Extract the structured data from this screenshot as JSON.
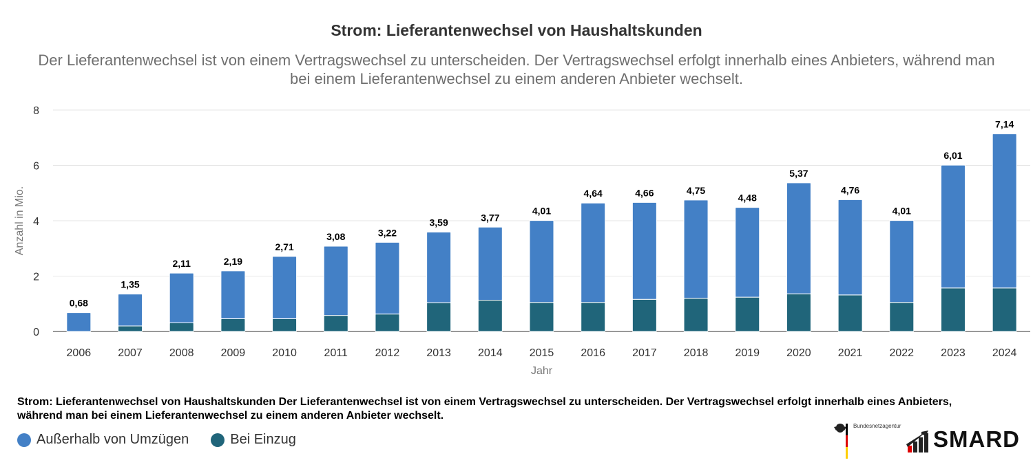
{
  "chart_data": {
    "type": "bar",
    "stacked": true,
    "title": "Strom: Lieferantenwechsel von Haushaltskunden",
    "subtitle": "Der Lieferantenwechsel ist von einem Vertragswechsel zu unterscheiden. Der Vertragswechsel erfolgt innerhalb eines Anbieters, während man bei einem Lieferantenwechsel zu einem anderen Anbieter wechselt.",
    "xlabel": "Jahr",
    "ylabel": "Anzahl in Mio.",
    "ylim": [
      0,
      8
    ],
    "yticks": [
      0,
      2,
      4,
      6,
      8
    ],
    "grid": true,
    "legend_position": "bottom-left",
    "categories": [
      "2006",
      "2007",
      "2008",
      "2009",
      "2010",
      "2011",
      "2012",
      "2013",
      "2014",
      "2015",
      "2016",
      "2017",
      "2018",
      "2019",
      "2020",
      "2021",
      "2022",
      "2023",
      "2024"
    ],
    "series": [
      {
        "name": "Außerhalb von Umzügen",
        "color": "#4380c6",
        "values": [
          0.68,
          1.15,
          1.8,
          1.73,
          2.25,
          2.5,
          2.59,
          2.55,
          2.64,
          2.96,
          3.59,
          3.5,
          3.55,
          3.24,
          4.01,
          3.44,
          2.96,
          4.44,
          5.57
        ]
      },
      {
        "name": "Bei Einzug",
        "color": "#20657a",
        "values": [
          0,
          0.2,
          0.31,
          0.46,
          0.46,
          0.58,
          0.63,
          1.04,
          1.13,
          1.05,
          1.05,
          1.16,
          1.2,
          1.24,
          1.36,
          1.32,
          1.05,
          1.57,
          1.57
        ]
      }
    ],
    "totals_labels": [
      "0,68",
      "1,35",
      "2,11",
      "2,19",
      "2,71",
      "3,08",
      "3,22",
      "3,59",
      "3,77",
      "4,01",
      "4,64",
      "4,66",
      "4,75",
      "4,48",
      "5,37",
      "4,76",
      "4,01",
      "6,01",
      "7,14"
    ]
  },
  "caption": "Strom: Lieferantenwechsel von Haushaltskunden Der Lieferantenwechsel ist von einem Vertragswechsel zu unterscheiden. Der Vertragswechsel erfolgt innerhalb eines Anbieters, während man bei einem Lieferantenwechsel zu einem anderen Anbieter wechselt.",
  "branding": {
    "agency": "Bundesnetzagentur",
    "logo": "SMARD"
  }
}
